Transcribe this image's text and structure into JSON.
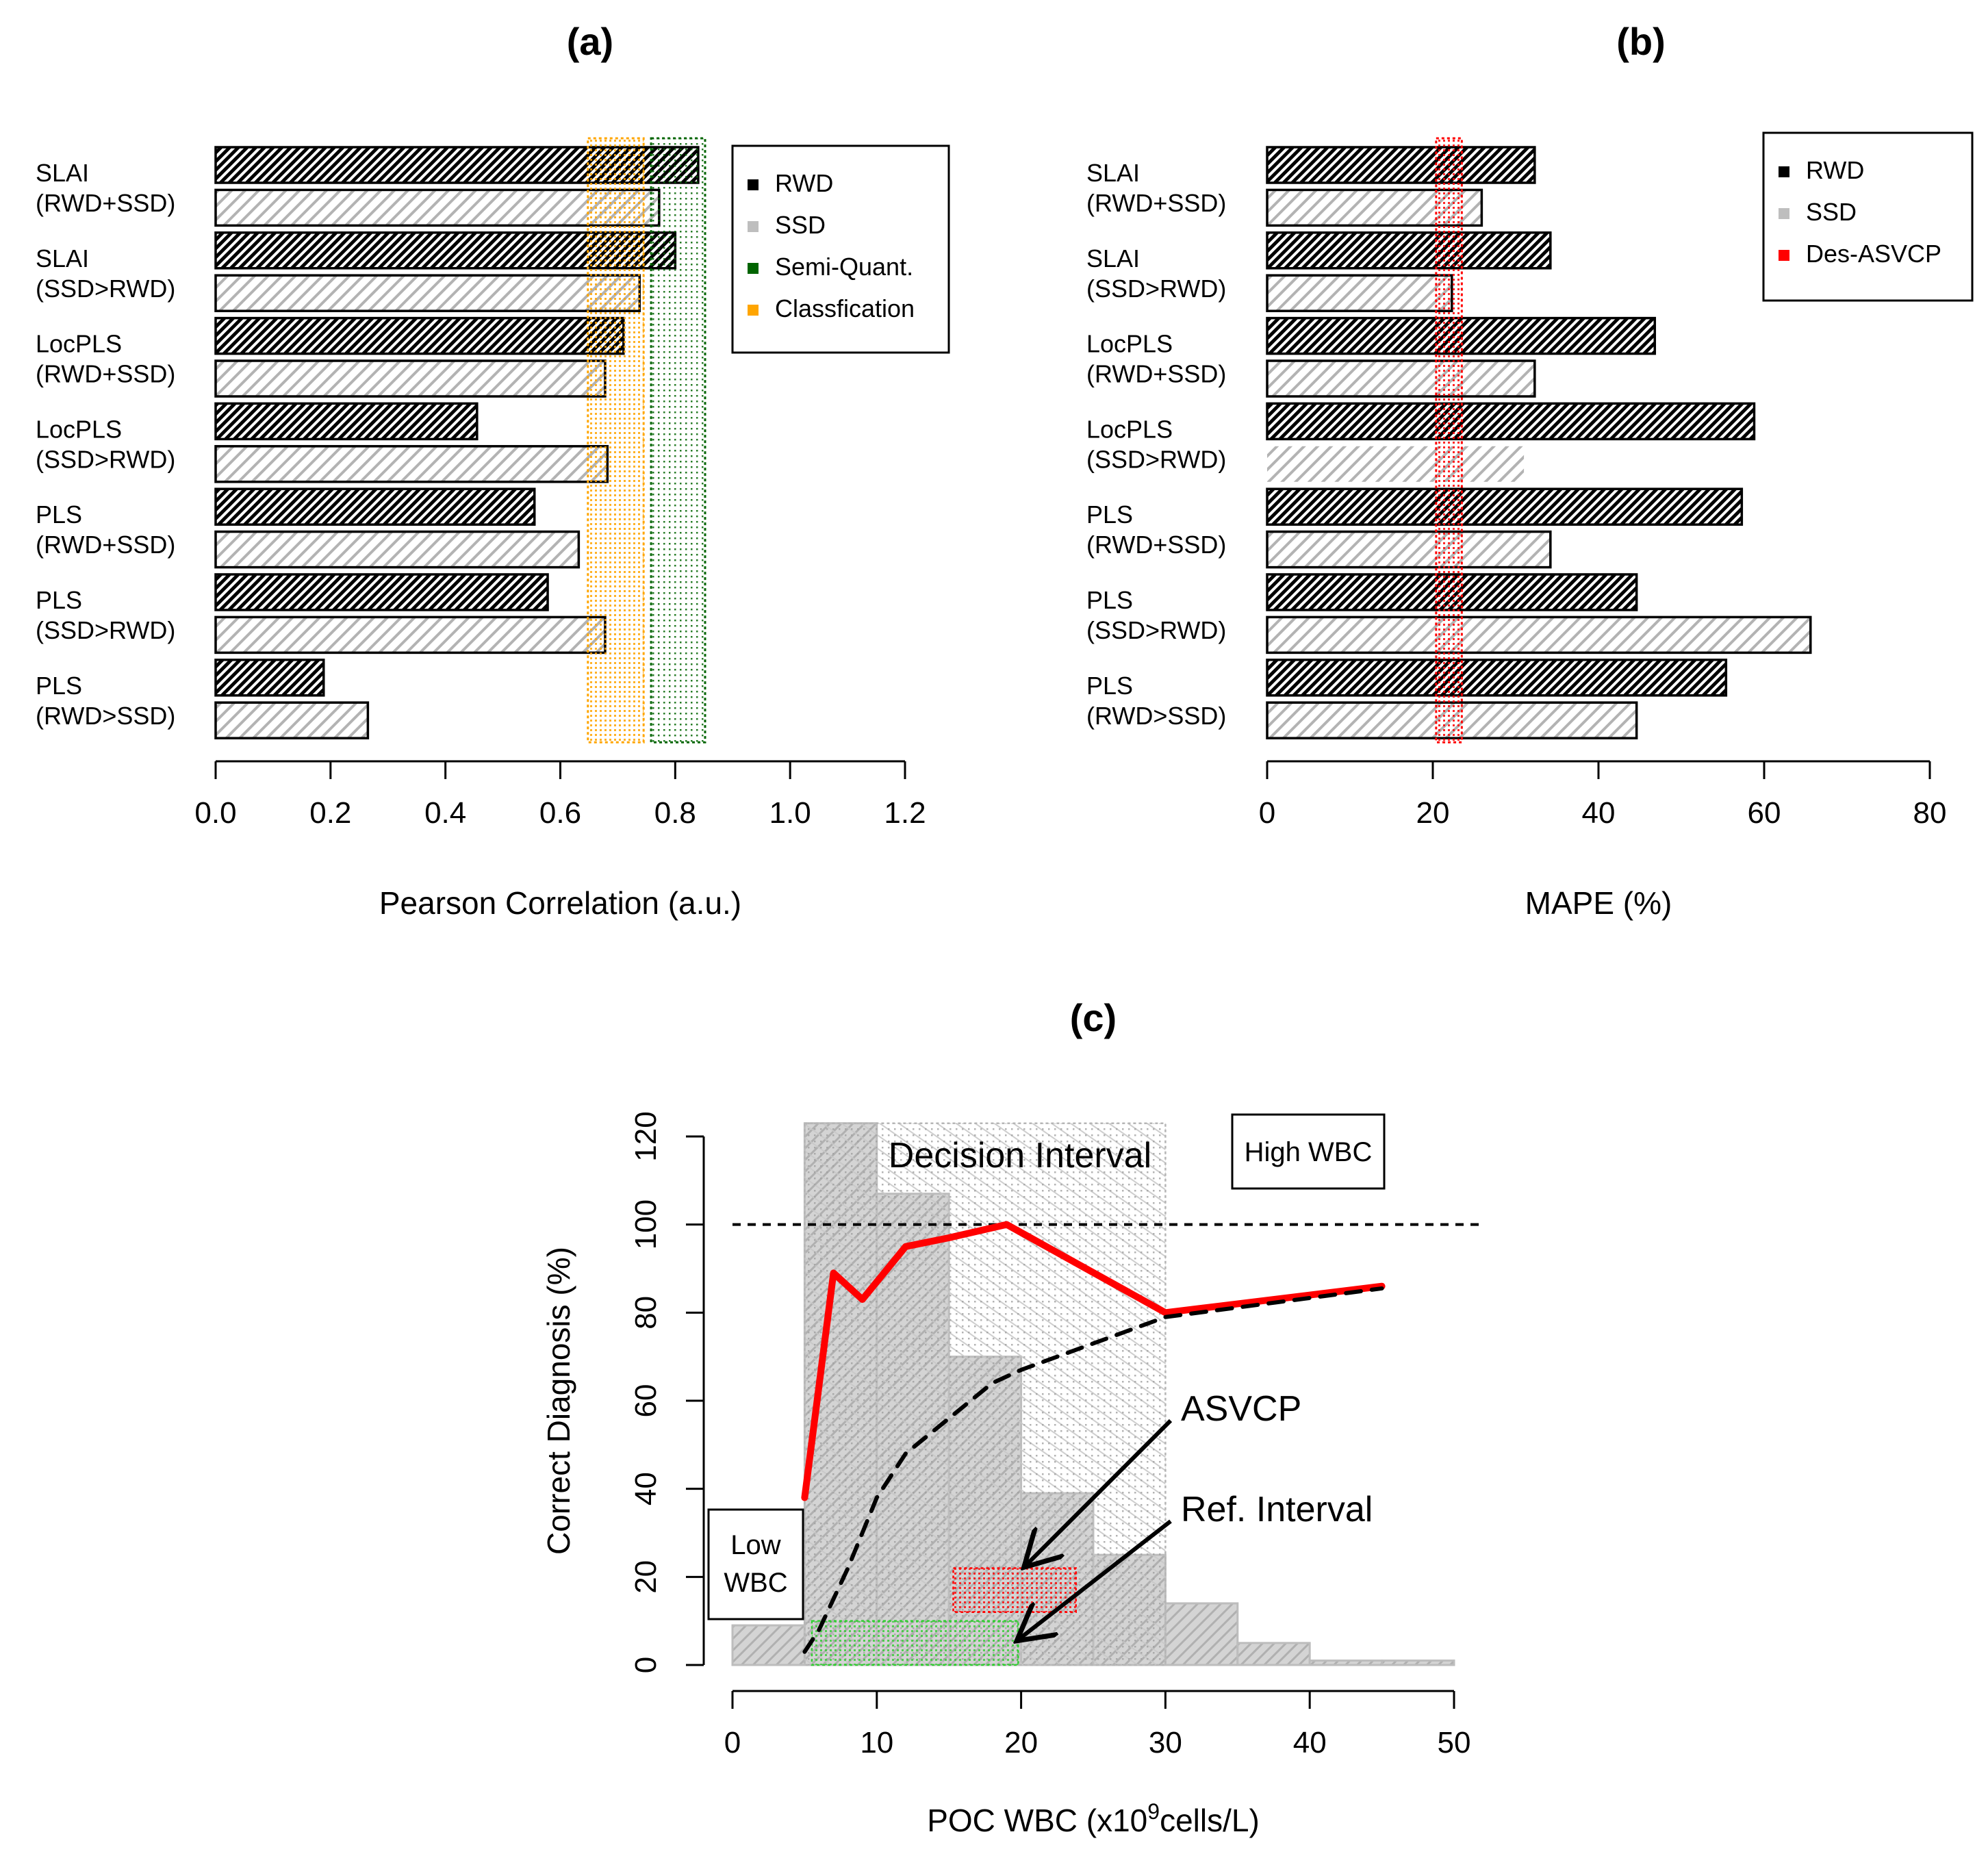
{
  "chart_data": [
    {
      "id": "a",
      "type": "bar",
      "orientation": "horizontal",
      "title": "(a)",
      "xlabel": "Pearson Correlation (a.u.)",
      "ylabel": "",
      "xlim": [
        0,
        1.2
      ],
      "xticks": [
        "0.0",
        "0.2",
        "0.4",
        "0.6",
        "0.8",
        "1.0",
        "1.2"
      ],
      "xtick_values": [
        0,
        0.2,
        0.4,
        0.6,
        0.8,
        1.0,
        1.2
      ],
      "categories": [
        [
          "SLAI",
          "(RWD+SSD)"
        ],
        [
          "SLAI",
          "(SSD>RWD)"
        ],
        [
          "LocPLS",
          "(RWD+SSD)"
        ],
        [
          "LocPLS",
          "(SSD>RWD)"
        ],
        [
          "PLS",
          "(RWD+SSD)"
        ],
        [
          "PLS",
          "(SSD>RWD)"
        ],
        [
          "PLS",
          "(RWD>SSD)"
        ]
      ],
      "series": [
        {
          "name": "RWD",
          "color": "#000000",
          "values": [
            0.84,
            0.8,
            0.71,
            0.455,
            0.555,
            0.578,
            0.188
          ]
        },
        {
          "name": "SSD",
          "color": "#bebebe",
          "values": [
            0.772,
            0.738,
            0.678,
            0.682,
            0.632,
            0.678,
            0.265
          ]
        }
      ],
      "bands": [
        {
          "name": "Classfication",
          "color": "#ffa500",
          "range": [
            0.648,
            0.745
          ]
        },
        {
          "name": "Semi-Quant.",
          "color": "#006400",
          "range": [
            0.758,
            0.852
          ]
        }
      ],
      "legend": {
        "position": "top-right",
        "entries": [
          {
            "label": "RWD",
            "color": "#000000"
          },
          {
            "label": "SSD",
            "color": "#bebebe"
          },
          {
            "label": "Semi-Quant.",
            "color": "#006400"
          },
          {
            "label": "Classfication",
            "color": "#ffa500"
          }
        ]
      }
    },
    {
      "id": "b",
      "type": "bar",
      "orientation": "horizontal",
      "title": "(b)",
      "xlabel": "MAPE (%)",
      "ylabel": "",
      "xlim": [
        0,
        80
      ],
      "xticks": [
        "0",
        "20",
        "40",
        "60",
        "80"
      ],
      "xtick_values": [
        0,
        20,
        40,
        60,
        80
      ],
      "categories": [
        [
          "SLAI",
          "(RWD+SSD)"
        ],
        [
          "SLAI",
          "(SSD>RWD)"
        ],
        [
          "LocPLS",
          "(RWD+SSD)"
        ],
        [
          "LocPLS",
          "(SSD>RWD)"
        ],
        [
          "PLS",
          "(RWD+SSD)"
        ],
        [
          "PLS",
          "(SSD>RWD)"
        ],
        [
          "PLS",
          "(RWD>SSD)"
        ]
      ],
      "series": [
        {
          "name": "RWD",
          "color": "#000000",
          "values": [
            32.3,
            34.2,
            46.8,
            58.8,
            57.3,
            44.6,
            55.4
          ]
        },
        {
          "name": "SSD",
          "color": "#bebebe",
          "values": [
            25.9,
            22.3,
            32.3,
            31.0,
            34.2,
            65.6,
            44.6
          ]
        }
      ],
      "bands": [
        {
          "name": "Des-ASVCP",
          "color": "#ff0000",
          "range": [
            20.4,
            23.5
          ]
        }
      ],
      "legend": {
        "position": "top-right",
        "entries": [
          {
            "label": "RWD",
            "color": "#000000"
          },
          {
            "label": "SSD",
            "color": "#bebebe"
          },
          {
            "label": "Des-ASVCP",
            "color": "#ff0000"
          }
        ]
      }
    },
    {
      "id": "c",
      "type": "line",
      "title": "(c)",
      "xlabel_prefix": "POC WBC (x10",
      "xlabel_sup": "9",
      "xlabel_suffix": "cells/L)",
      "ylabel": "Correct Diagnosis (%)",
      "xlim": [
        0,
        50
      ],
      "ylim": [
        0,
        120
      ],
      "xticks": [
        "0",
        "10",
        "20",
        "30",
        "40",
        "50"
      ],
      "xtick_values": [
        0,
        10,
        20,
        30,
        40,
        50
      ],
      "yticks": [
        "0",
        "20",
        "40",
        "60",
        "80",
        "100",
        "120"
      ],
      "ytick_values": [
        0,
        20,
        40,
        60,
        80,
        100,
        120
      ],
      "histogram": {
        "bin_edges": [
          0,
          5,
          10,
          15,
          20,
          25,
          30,
          35,
          40,
          45,
          50
        ],
        "heights": [
          9,
          123,
          107,
          70,
          39,
          25,
          14,
          5,
          1,
          1
        ],
        "color": "#bebebe"
      },
      "reference_line": {
        "y": 100,
        "x_range": [
          0,
          52
        ]
      },
      "series": [
        {
          "name": "Des-ASVCP",
          "color": "#ff0000",
          "style": "solid",
          "x": [
            5,
            7,
            9,
            12,
            15,
            19,
            30,
            45
          ],
          "y": [
            38,
            89,
            83,
            95,
            97,
            100,
            80,
            86
          ]
        },
        {
          "name": "ASVCP",
          "color": "#000000",
          "style": "dashed",
          "x": [
            5,
            6,
            8,
            10,
            12,
            15,
            18,
            20,
            25,
            30,
            45
          ],
          "y": [
            3,
            8,
            22,
            38,
            48,
            56,
            64,
            67,
            73,
            79,
            85.5
          ]
        }
      ],
      "regions": [
        {
          "name": "Decision Interval",
          "x": [
            5,
            30
          ],
          "y": [
            0,
            123
          ],
          "color": "#bebebe"
        },
        {
          "name": "ASVCP",
          "x": [
            15.3,
            23.8
          ],
          "y": [
            12,
            22
          ],
          "color": "#ff0000"
        },
        {
          "name": "Ref. Interval",
          "x": [
            5.5,
            19.8
          ],
          "y": [
            0,
            10
          ],
          "color": "#32cd32"
        }
      ],
      "annotations": {
        "decision_interval": "Decision Interval",
        "high_wbc": "High WBC",
        "low_wbc_line1": "Low",
        "low_wbc_line2": "WBC",
        "asvcp": "ASVCP",
        "ref_interval": "Ref. Interval"
      }
    }
  ]
}
